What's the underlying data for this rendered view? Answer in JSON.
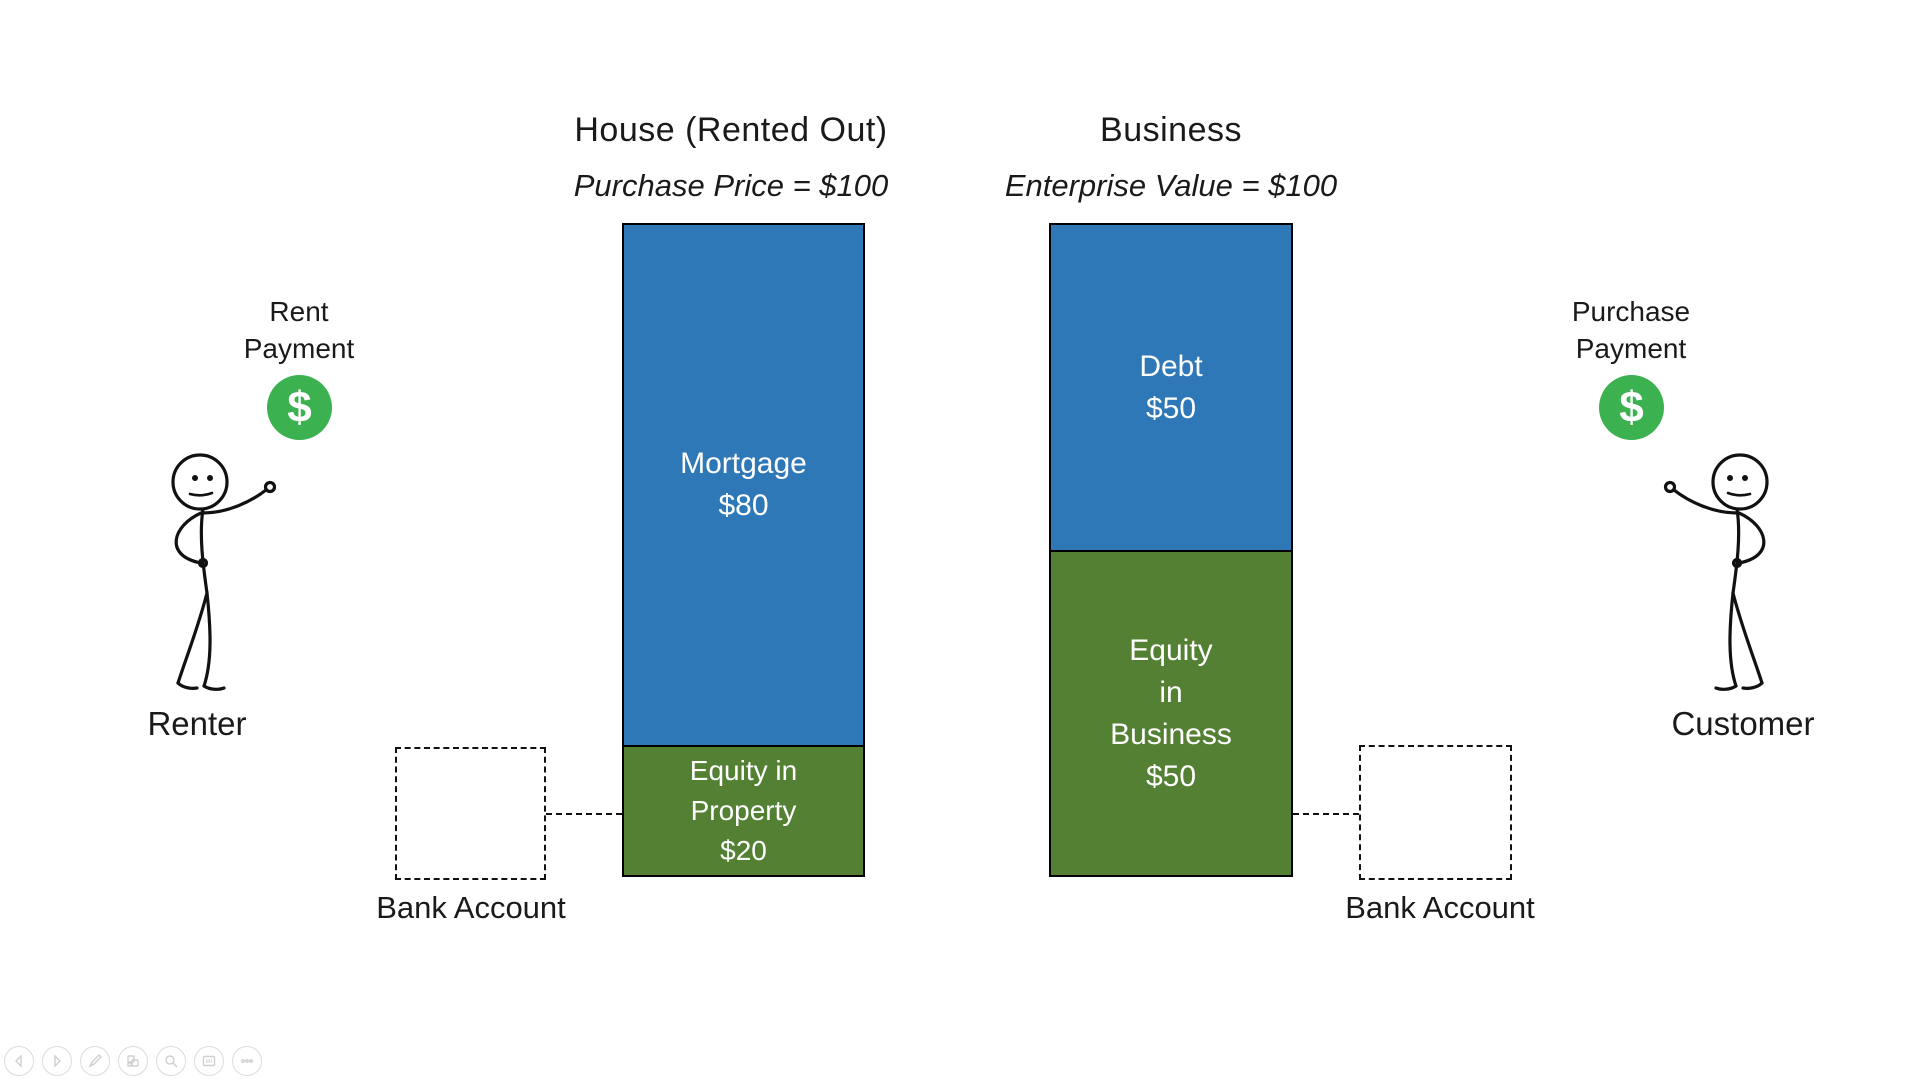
{
  "chart_data": [
    {
      "type": "stacked-bar",
      "title": "House (Rented Out)",
      "subtitle": "Purchase Price = $100",
      "total": 100,
      "segments": [
        {
          "name": "Mortgage",
          "value": 80,
          "color": "#2E78B8",
          "text_lines": [
            "Mortgage",
            "$80"
          ]
        },
        {
          "name": "Equity in Property",
          "value": 20,
          "color": "#538033",
          "text_lines": [
            "Equity in",
            "Property",
            "$20"
          ]
        }
      ]
    },
    {
      "type": "stacked-bar",
      "title": "Business",
      "subtitle": "Enterprise Value = $100",
      "total": 100,
      "segments": [
        {
          "name": "Debt",
          "value": 50,
          "color": "#2E78B8",
          "text_lines": [
            "Debt",
            "$50"
          ]
        },
        {
          "name": "Equity in Business",
          "value": 50,
          "color": "#538033",
          "text_lines": [
            "Equity",
            "in",
            "Business",
            "$50"
          ]
        }
      ]
    }
  ],
  "left_actor": {
    "payment_lines": [
      "Rent",
      "Payment"
    ],
    "coin_symbol": "$",
    "coin_color": "#3CB14F",
    "name": "Renter"
  },
  "right_actor": {
    "payment_lines": [
      "Purchase",
      "Payment"
    ],
    "coin_symbol": "$",
    "coin_color": "#3CB14F",
    "name": "Customer"
  },
  "bank_accounts": {
    "left_label": "Bank Account",
    "right_label": "Bank Account"
  },
  "toolbar": {
    "buttons": [
      "previous-icon",
      "next-icon",
      "pen-icon",
      "slides-icon",
      "zoom-icon",
      "whiteboard-icon",
      "more-icon"
    ]
  }
}
